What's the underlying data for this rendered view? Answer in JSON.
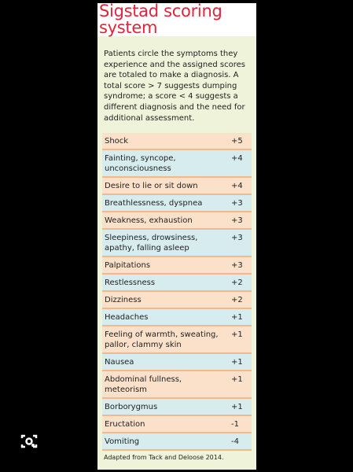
{
  "header": {
    "title": "Sigstad scoring system"
  },
  "intro": "Patients circle the symptoms they experience and the assigned scores are totaled to make a diagnosis. A total score > 7 suggests dumping syndrome; a score < 4 suggests a different diagnosis and the need for additional assessment.",
  "table": {
    "rows": [
      [
        "Shock",
        "+5"
      ],
      [
        "Fainting, syncope, unconsciousness",
        "+4"
      ],
      [
        "Desire to lie or sit down",
        "+4"
      ],
      [
        "Breathlessness, dyspnea",
        "+3"
      ],
      [
        "Weakness, exhaustion",
        "+3"
      ],
      [
        "Sleepiness, drowsiness, apathy, falling asleep",
        "+3"
      ],
      [
        "Palpitations",
        "+3"
      ],
      [
        "Restlessness",
        "+2"
      ],
      [
        "Dizziness",
        "+2"
      ],
      [
        "Headaches",
        "+1"
      ],
      [
        "Feeling of warmth, sweating, pallor, clammy skin",
        "+1"
      ],
      [
        "Nausea",
        "+1"
      ],
      [
        "Abdominal fullness, meteorism",
        "+1"
      ],
      [
        "Borborygmus",
        "+1"
      ],
      [
        "Eructation",
        "-1"
      ],
      [
        "Vomiting",
        "-4"
      ]
    ]
  },
  "footer": "Adapted from Tack and Deloose 2014."
}
